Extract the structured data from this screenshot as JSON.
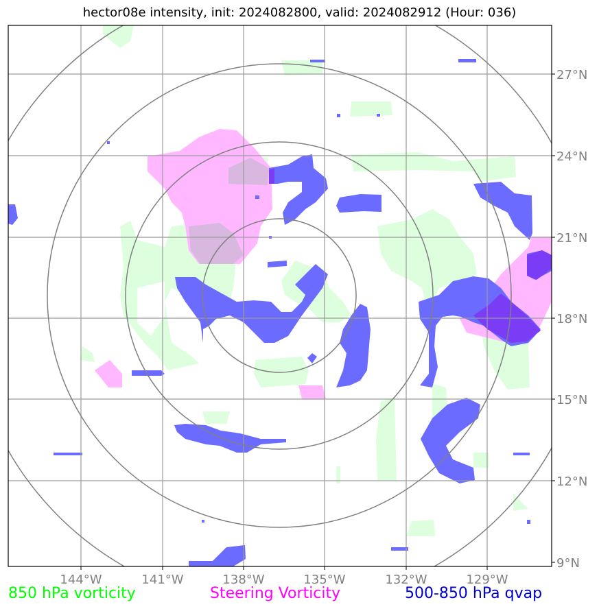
{
  "title": "hector08e intensity, init: 2024082800, valid: 2024082912 (Hour: 036)",
  "map": {
    "lon_ticks": [
      "144°W",
      "141°W",
      "138°W",
      "135°W",
      "132°W",
      "129°W"
    ],
    "lat_ticks": [
      "27°N",
      "24°N",
      "21°N",
      "18°N",
      "15°N",
      "12°N",
      "9°N"
    ],
    "center": {
      "lon": -136.5,
      "lat": 19.0
    },
    "range_rings_deg": [
      2.75,
      5.5,
      8.3
    ]
  },
  "legend": [
    {
      "label": "850 hPa vorticity",
      "color": "#00ff00"
    },
    {
      "label": "Steering Vorticity",
      "color": "#ff00ff"
    },
    {
      "label": "500-850 hPa qvap",
      "color": "#0000cc"
    }
  ],
  "colors": {
    "vort850_fill": "#ddffdd",
    "steering_fill": "#ffb8ff",
    "qvap_fill": "#6b6bff",
    "grid": "#9a9a9a",
    "rings": "#808080"
  }
}
